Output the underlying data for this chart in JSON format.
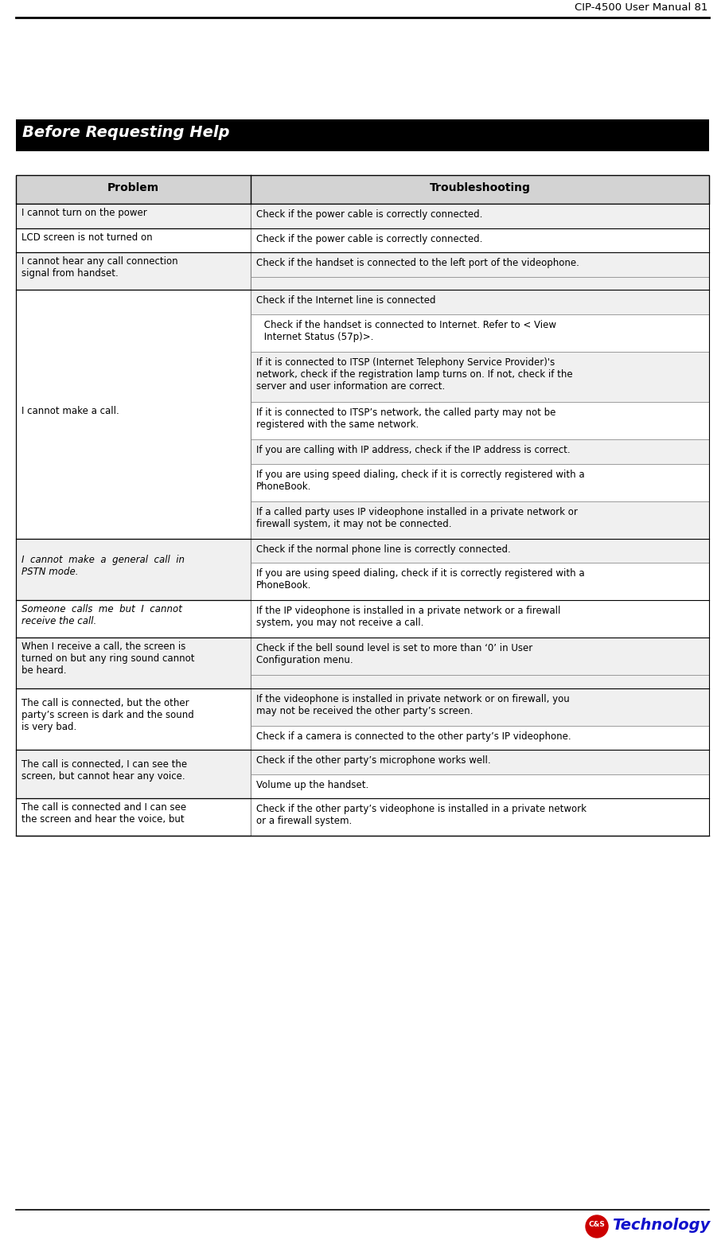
{
  "page_header": "CIP-4500 User Manual 81",
  "section_title": "Before Requesting Help",
  "col1_header": "Problem",
  "col2_header": "Troubleshooting",
  "rows": [
    {
      "problem": "I cannot turn on the power",
      "bullets": [
        "Check if the power cable is correctly connected."
      ],
      "prob_italic": false
    },
    {
      "problem": "LCD screen is not turned on",
      "bullets": [
        "Check if the power cable is correctly connected."
      ],
      "prob_italic": false
    },
    {
      "problem": "I cannot hear any call connection\nsignal from handset.",
      "bullets": [
        "Check if the handset is connected to the left port of the videophone."
      ],
      "prob_italic": false
    },
    {
      "problem": "I cannot make a call.",
      "bullets": [
        "Check if the Internet line is connected",
        " Check if the handset is connected to Internet. Refer to < View\n Internet Status (57p)>.",
        "If it is connected to ITSP (Internet Telephony Service Provider)'s\nnetwork, check if the registration lamp turns on. If not, check if the\nserver and user information are correct.",
        "If it is connected to ITSP’s network, the called party may not be\nregistered with the same network.",
        "If you are calling with IP address, check if the IP address is correct.",
        "If you are using speed dialing, check if it is correctly registered with a\nPhoneBook.",
        "If a called party uses IP videophone installed in a private network or\nfirewall system, it may not be connected."
      ],
      "prob_italic": false
    },
    {
      "problem": "I  cannot  make  a  general  call  in\nPSTN mode.",
      "bullets": [
        "Check if the normal phone line is correctly connected.",
        "If you are using speed dialing, check if it is correctly registered with a\nPhoneBook."
      ],
      "prob_italic": true
    },
    {
      "problem": "Someone  calls  me  but  I  cannot\nreceive the call.",
      "bullets": [
        "If the IP videophone is installed in a private network or a firewall\nsystem, you may not receive a call."
      ],
      "prob_italic": true
    },
    {
      "problem": "When I receive a call, the screen is\nturned on but any ring sound cannot\nbe heard.",
      "bullets": [
        "Check if the bell sound level is set to more than ‘0’ in User\nConfiguration menu."
      ],
      "prob_italic": false
    },
    {
      "problem": "The call is connected, but the other\nparty’s screen is dark and the sound\nis very bad.",
      "bullets": [
        "If the videophone is installed in private network or on firewall, you\nmay not be received the other party’s screen.",
        "Check if a camera is connected to the other party’s IP videophone."
      ],
      "prob_italic": false
    },
    {
      "problem": "The call is connected, I can see the\nscreen, but cannot hear any voice.",
      "bullets": [
        "Check if the other party’s microphone works well.",
        "Volume up the handset."
      ],
      "prob_italic": false
    },
    {
      "problem": "The call is connected and I can see\nthe screen and hear the voice, but",
      "bullets": [
        "Check if the other party’s videophone is installed in a private network\nor a firewall system."
      ],
      "prob_italic": false
    }
  ],
  "bg_color": "#ffffff",
  "header_bg": "#000000",
  "header_fg": "#ffffff",
  "table_header_bg": "#d3d3d3",
  "table_border": "#000000",
  "cell_border": "#888888",
  "logo_circle_color": "#cc0000",
  "logo_text_color": "#1111cc",
  "logo_text": "Technology"
}
